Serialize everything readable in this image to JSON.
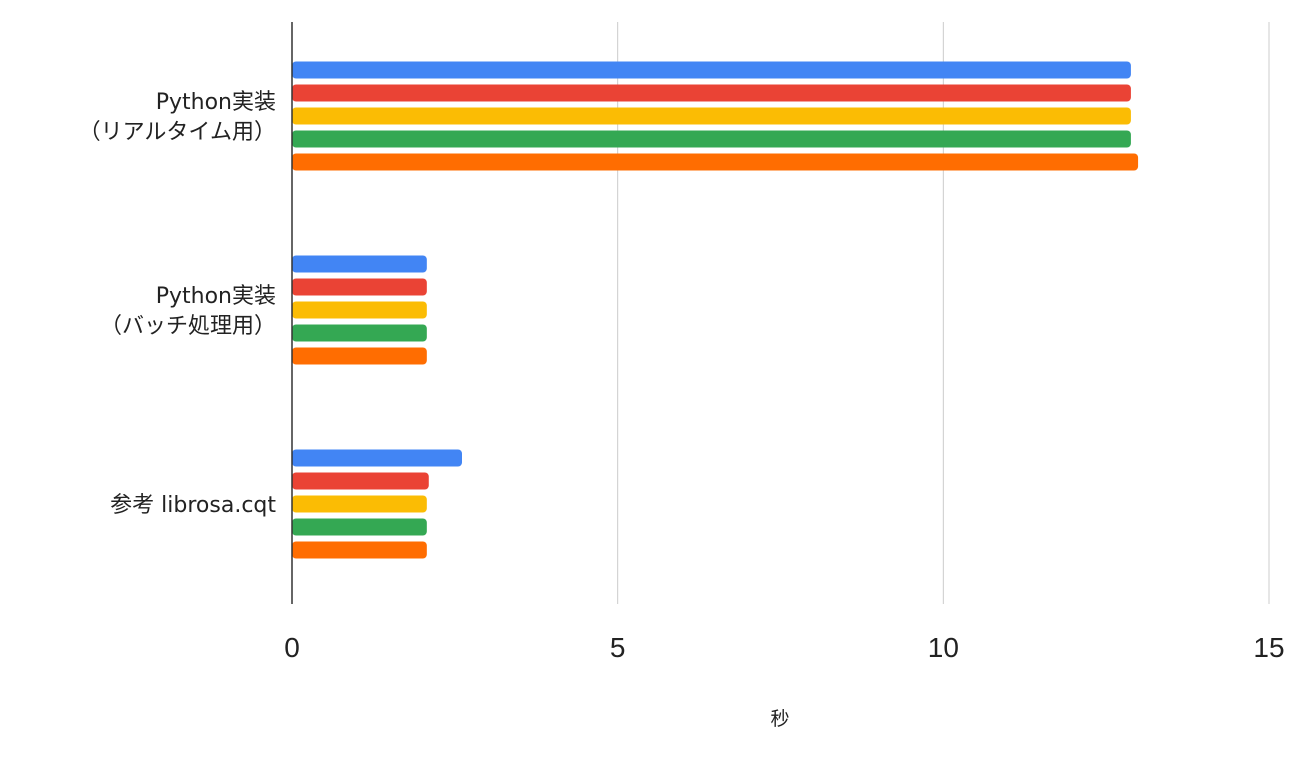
{
  "chart_data": {
    "type": "bar",
    "orientation": "horizontal",
    "title": "",
    "xlabel": "秒",
    "ylabel": "",
    "xlim": [
      0,
      15
    ],
    "xticks": [
      0,
      5,
      10,
      15
    ],
    "grid": true,
    "legend": "none",
    "categories": [
      [
        "Python実装",
        "（リアルタイム用）"
      ],
      [
        "Python実装",
        "（バッチ処理用）"
      ],
      [
        "参考 librosa.cqt"
      ]
    ],
    "series": [
      {
        "color": "#4285f4",
        "values": [
          12.88,
          2.07,
          2.61
        ]
      },
      {
        "color": "#ea4335",
        "values": [
          12.88,
          2.07,
          2.1
        ]
      },
      {
        "color": "#fbbc04",
        "values": [
          12.88,
          2.07,
          2.07
        ]
      },
      {
        "color": "#34a853",
        "values": [
          12.88,
          2.07,
          2.07
        ]
      },
      {
        "color": "#ff6d01",
        "values": [
          12.99,
          2.07,
          2.07
        ]
      }
    ]
  }
}
